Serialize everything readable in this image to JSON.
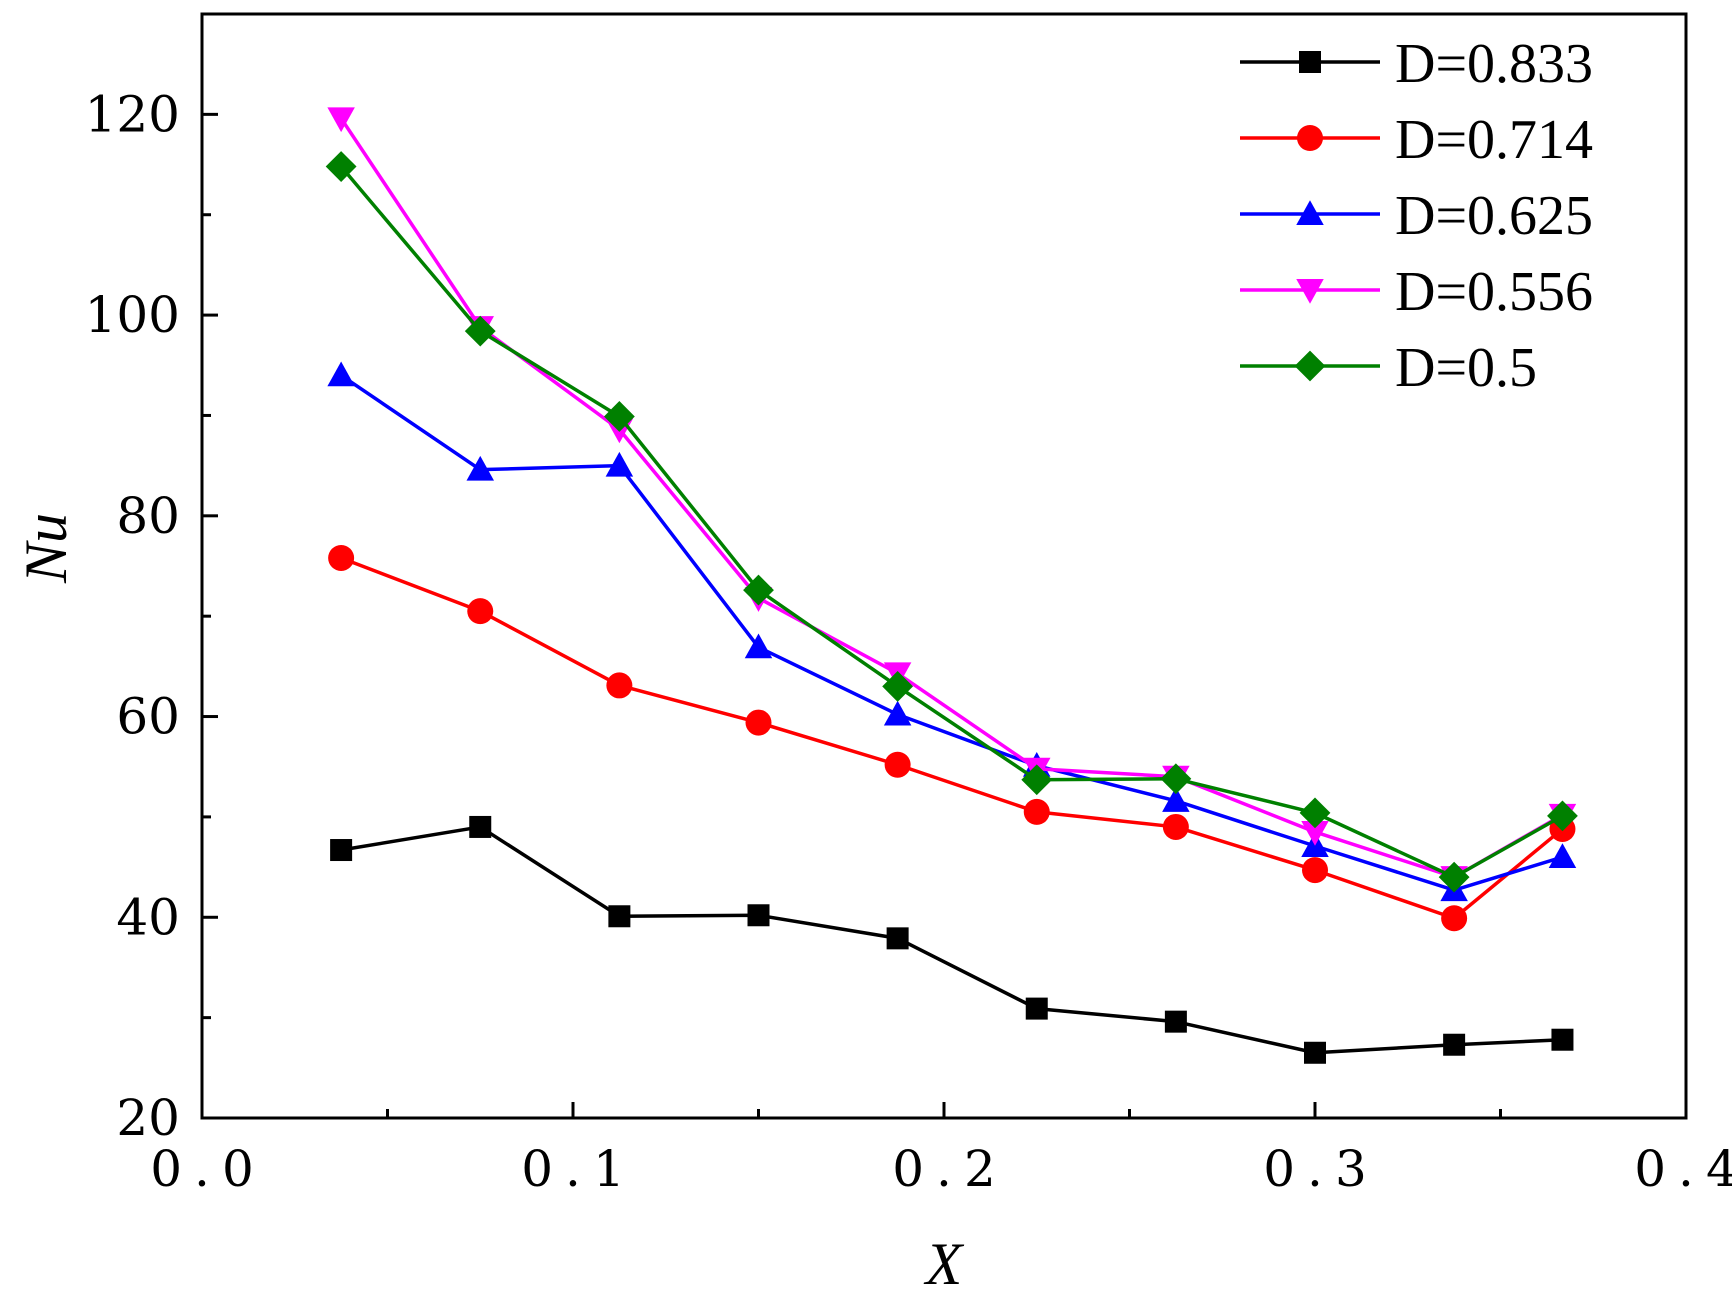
{
  "chart_data": {
    "type": "line",
    "xlabel": "X",
    "ylabel": "Nu",
    "xlim": [
      0.0,
      0.4
    ],
    "ylim": [
      20,
      130
    ],
    "x_ticks": [
      "0.0",
      "0.1",
      "0.2",
      "0.3",
      "0.4"
    ],
    "y_ticks": [
      "20",
      "40",
      "60",
      "80",
      "100",
      "120"
    ],
    "grid": false,
    "legend_position": "top-right",
    "x": [
      0.0375,
      0.075,
      0.1125,
      0.15,
      0.1875,
      0.225,
      0.2625,
      0.3,
      0.3375,
      0.3667
    ],
    "series": [
      {
        "name": "D=0.833",
        "color": "#000000",
        "marker": "square",
        "values": [
          46.7,
          49.0,
          40.1,
          40.2,
          37.9,
          30.9,
          29.6,
          26.5,
          27.3,
          27.8
        ]
      },
      {
        "name": "D=0.714",
        "color": "#ff0000",
        "marker": "circle",
        "values": [
          75.8,
          70.5,
          63.1,
          59.4,
          55.2,
          50.5,
          49.0,
          44.7,
          39.9,
          48.8
        ]
      },
      {
        "name": "D=0.625",
        "color": "#0000ff",
        "marker": "triangle-up",
        "values": [
          94.0,
          84.6,
          85.0,
          66.9,
          60.2,
          55.1,
          51.6,
          47.1,
          42.7,
          46.0
        ]
      },
      {
        "name": "D=0.556",
        "color": "#ff00ff",
        "marker": "triangle-down",
        "values": [
          119.6,
          98.8,
          88.6,
          71.8,
          64.3,
          54.8,
          54.0,
          48.5,
          44.0,
          50.2
        ]
      },
      {
        "name": "D=0.5",
        "color": "#008000",
        "marker": "diamond",
        "values": [
          114.8,
          98.4,
          89.9,
          72.6,
          63.0,
          53.7,
          53.8,
          50.4,
          44.0,
          50.1
        ]
      }
    ]
  }
}
